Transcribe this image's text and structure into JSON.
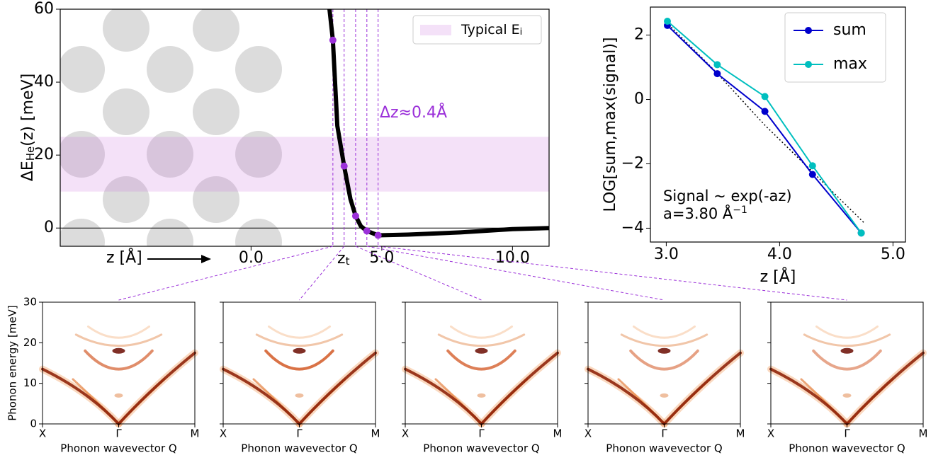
{
  "chart_data": [
    {
      "type": "line",
      "xlim": [
        -7.3,
        11.4
      ],
      "ylim": [
        -5,
        60
      ],
      "xticks": [
        {
          "value": 0,
          "label": "0.0"
        },
        {
          "value": 5,
          "label": "5.0"
        },
        {
          "value": 10,
          "label": "10.0"
        }
      ],
      "yticks": [
        0,
        20,
        40,
        60
      ],
      "xlabel": "z [Å]",
      "ylabel": [
        "ΔE",
        "He",
        "(z) [meV]"
      ],
      "hline": 0,
      "band": {
        "range": [
          10,
          25
        ],
        "color": "#cc77dd",
        "label": [
          "Typical E",
          "i"
        ]
      },
      "series": [
        {
          "color": "#000000",
          "x": [
            3.0,
            3.13,
            3.3,
            3.56,
            3.8,
            4.0,
            4.2,
            4.43,
            4.86,
            6,
            8,
            10,
            11.4
          ],
          "values": [
            60,
            51.5,
            28,
            17,
            8,
            3.3,
            0.5,
            -0.8,
            -2,
            -1.8,
            -1.2,
            -0.3,
            0
          ]
        }
      ],
      "markers": {
        "color": "#9b30d9",
        "x": [
          3.13,
          3.56,
          4.0,
          4.43,
          4.86
        ],
        "values": [
          51.5,
          17,
          3.3,
          -0.8,
          -2
        ]
      },
      "delta_annotation": "Δz≈0.4Å",
      "zt_label": [
        "z",
        "t"
      ],
      "legend": "upper right"
    },
    {
      "type": "line",
      "xlim": [
        2.86,
        5.11
      ],
      "ylim": [
        -4.43,
        2.87
      ],
      "xticks": [
        {
          "value": 3,
          "label": "3.0"
        },
        {
          "value": 4,
          "label": "4.0"
        },
        {
          "value": 5,
          "label": "5.0"
        }
      ],
      "yticks": [
        {
          "value": -4,
          "label": "−4"
        },
        {
          "value": -2,
          "label": "−2"
        },
        0,
        2
      ],
      "xlabel": "z [Å]",
      "ylabel": "LOG[sum,max(signal)]",
      "series": [
        {
          "name": "sum",
          "color": "#0000cc",
          "x": [
            3.01,
            3.45,
            3.87,
            4.29,
            4.72
          ],
          "values": [
            2.3,
            0.8,
            -0.37,
            -2.33,
            -4.15
          ]
        },
        {
          "name": "max",
          "color": "#00bfbf",
          "x": [
            3.01,
            3.45,
            3.87,
            4.29,
            4.72
          ],
          "values": [
            2.43,
            1.08,
            0.09,
            -2.06,
            -4.15
          ]
        }
      ],
      "fit": {
        "color": "#000000",
        "x": [
          3.0,
          3.44,
          3.87,
          4.29,
          4.75
        ],
        "values": [
          2.4,
          0.85,
          -0.8,
          -2.25,
          -3.85
        ]
      },
      "annotation": [
        "Signal ~ exp(-az)",
        "a=3.80 Å",
        "−1"
      ],
      "legend": "upper right"
    },
    {
      "type": "spectra",
      "ylim": [
        0,
        30
      ],
      "yticks": [
        0,
        10,
        20,
        30
      ],
      "ylabel": "Phonon energy [meV]",
      "panels": [
        {
          "categories": [
            "X",
            "Γ",
            "M"
          ],
          "xlabel": "Phonon wavevector Q"
        },
        {
          "categories": [
            "X",
            "Γ",
            "M"
          ],
          "xlabel": "Phonon wavevector Q"
        },
        {
          "categories": [
            "X",
            "Γ",
            "M"
          ],
          "xlabel": "Phonon wavevector Q"
        },
        {
          "categories": [
            "X",
            "Γ",
            "M"
          ],
          "xlabel": "Phonon wavevector Q"
        },
        {
          "categories": [
            "X",
            "Γ",
            "M"
          ],
          "xlabel": "Phonon wavevector Q"
        }
      ]
    }
  ]
}
